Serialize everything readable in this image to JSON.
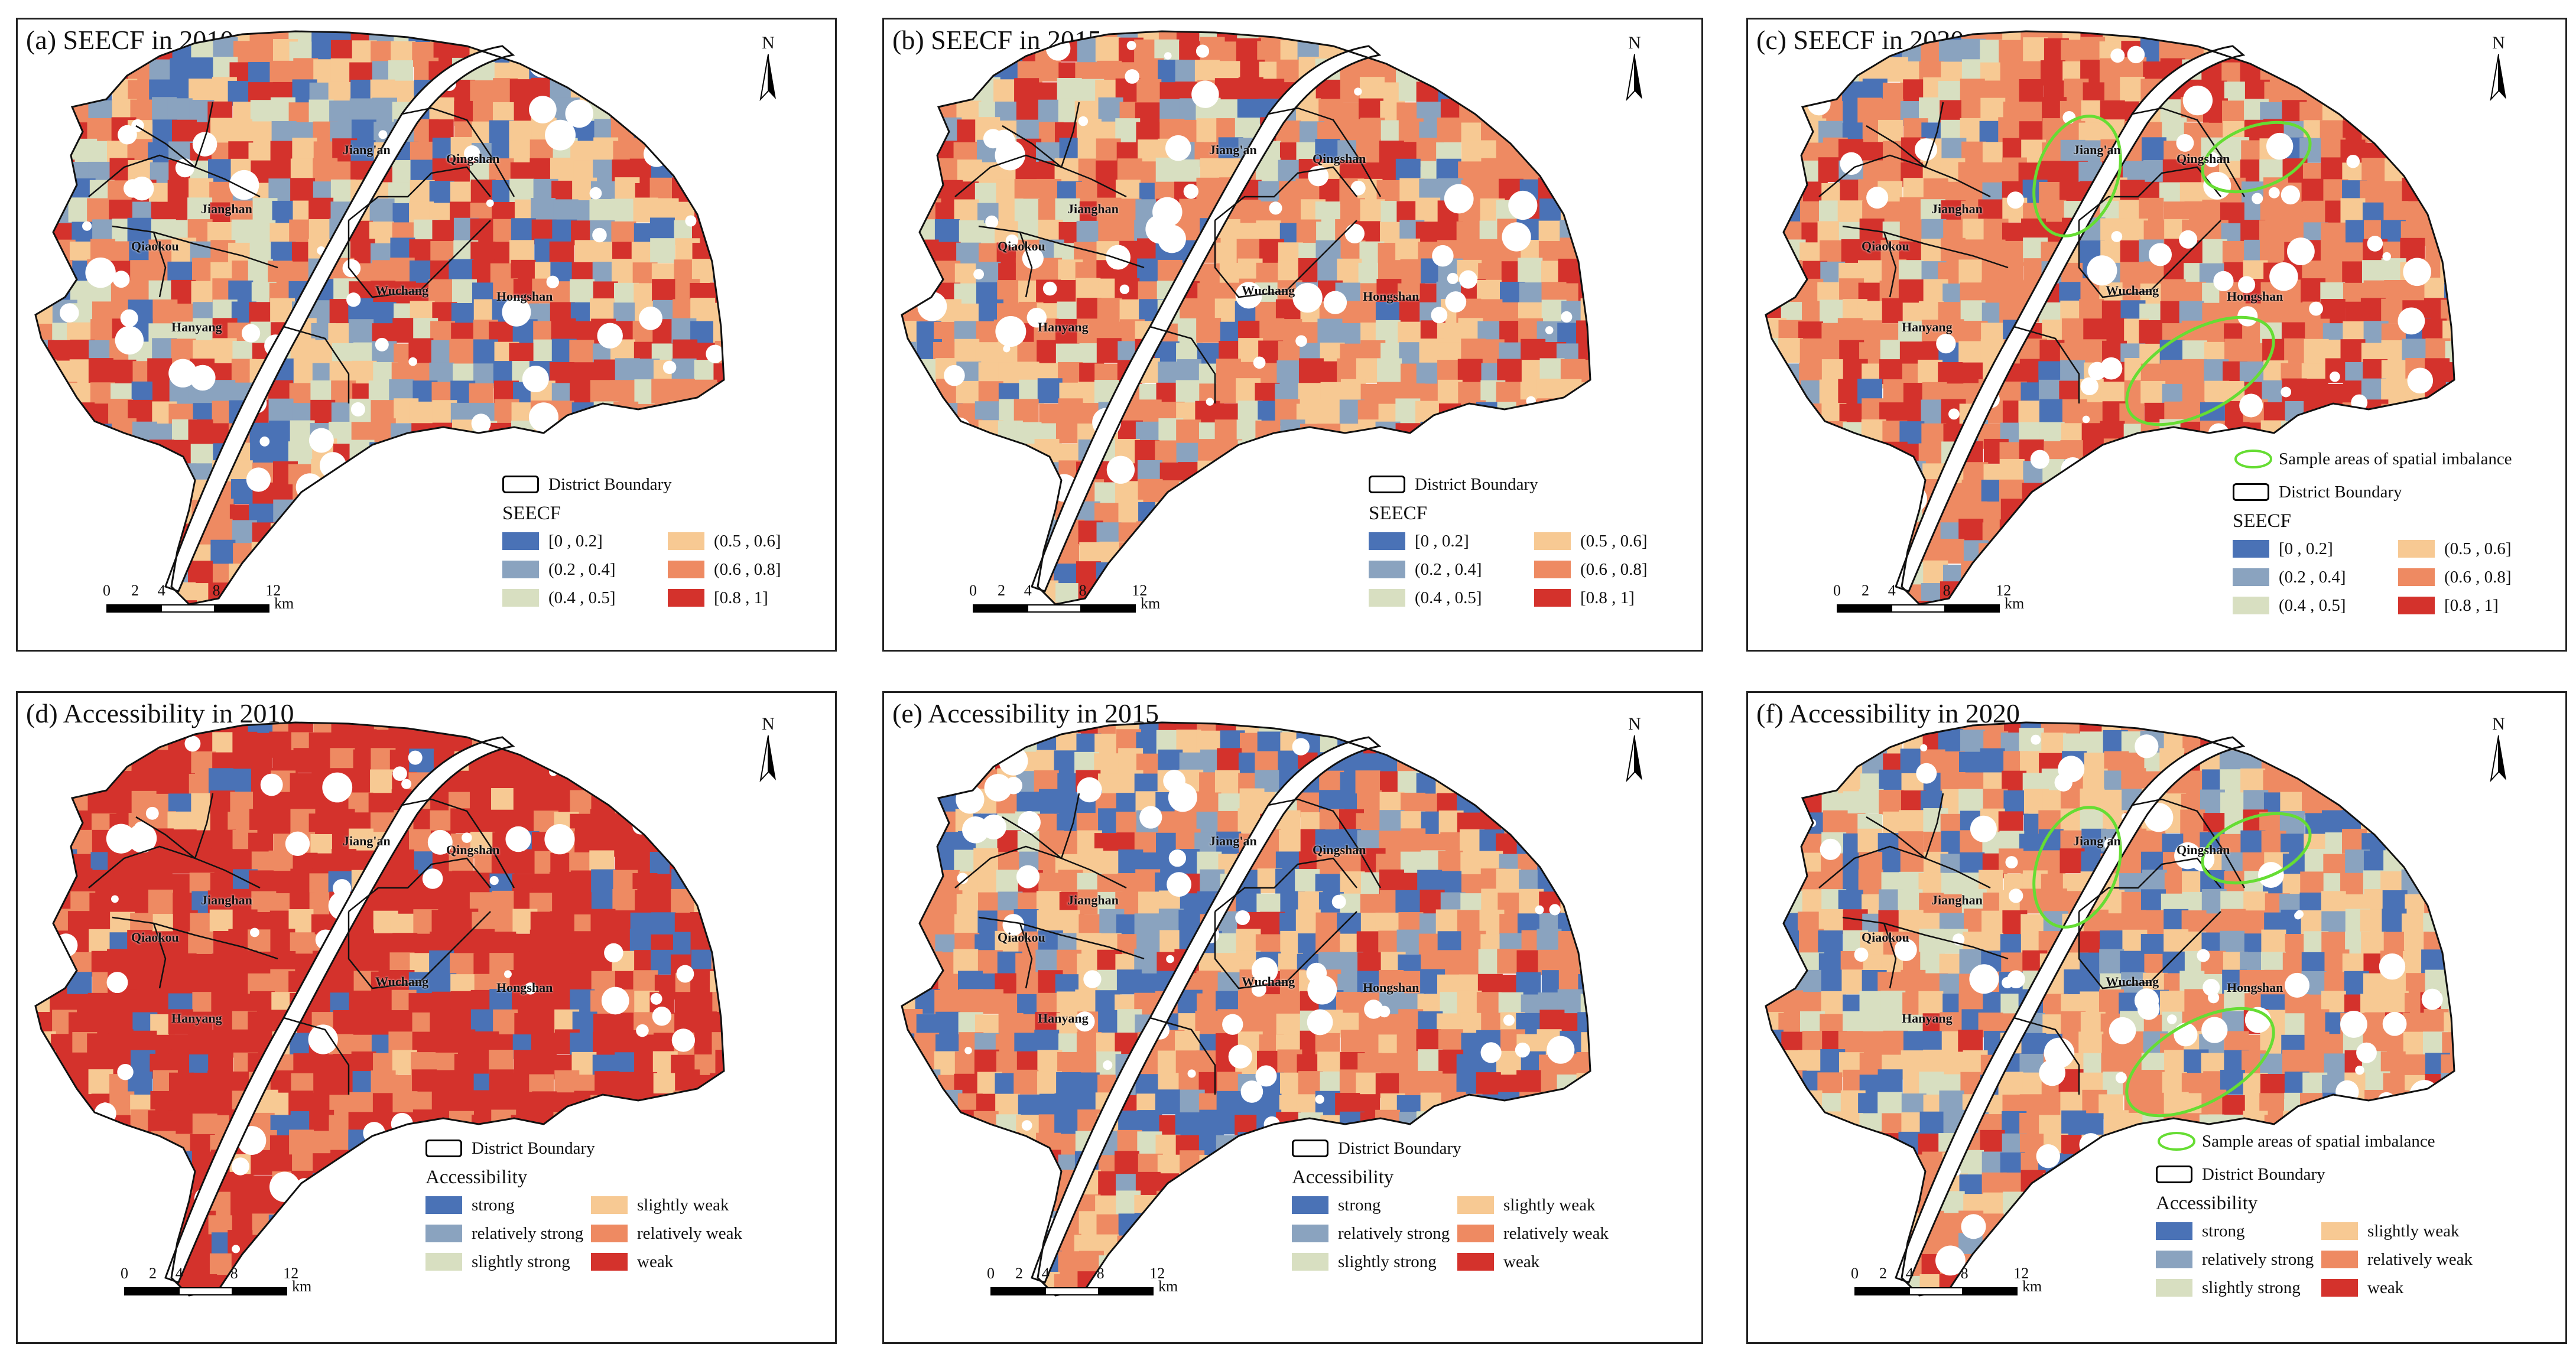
{
  "panels": [
    {
      "title": "(a) SEECF in 2010",
      "kind": "seecf",
      "highlight": false
    },
    {
      "title": "(b) SEECF in 2015",
      "kind": "seecf",
      "highlight": false
    },
    {
      "title": "(c) SEECF in 2020",
      "kind": "seecf",
      "highlight": true
    },
    {
      "title": "(d) Accessibility in 2010",
      "kind": "access",
      "highlight": false
    },
    {
      "title": "(e) Accessibility in 2015",
      "kind": "access",
      "highlight": false
    },
    {
      "title": "(f) Accessibility in 2020",
      "kind": "access",
      "highlight": true
    }
  ],
  "north_label": "N",
  "districts": [
    "Jiang'an",
    "Jianghan",
    "Qiaokou",
    "Hanyang",
    "Wuchang",
    "Qingshan",
    "Hongshan"
  ],
  "legend": {
    "boundary_label": "District Boundary",
    "imbalance_label": "Sample areas of spatial imbalance",
    "imbalance_color": "#66dd33",
    "seecf_title": "SEECF",
    "seecf_classes": [
      {
        "label": "[0 , 0.2]",
        "color": "#4a72b6"
      },
      {
        "label": "(0.2 , 0.4]",
        "color": "#8aa3bf"
      },
      {
        "label": "(0.4 , 0.5]",
        "color": "#d8dfc1"
      },
      {
        "label": "(0.5 , 0.6]",
        "color": "#f7c993"
      },
      {
        "label": "(0.6 , 0.8]",
        "color": "#ee8a62"
      },
      {
        "label": "[0.8 , 1]",
        "color": "#d4322c"
      }
    ],
    "access_title": "Accessibility",
    "access_classes": [
      {
        "label": "strong",
        "color": "#4a72b6"
      },
      {
        "label": "relatively strong",
        "color": "#8aa3bf"
      },
      {
        "label": "slightly strong",
        "color": "#d8dfc1"
      },
      {
        "label": "slightly weak",
        "color": "#f7c993"
      },
      {
        "label": "relatively weak",
        "color": "#ee8a62"
      },
      {
        "label": "weak",
        "color": "#d4322c"
      }
    ]
  },
  "scale": {
    "ticks": [
      "0",
      "2",
      "4",
      "8",
      "12"
    ],
    "unit": "km"
  },
  "colors": {
    "river": "#ffffff",
    "boundary": "#111111"
  }
}
